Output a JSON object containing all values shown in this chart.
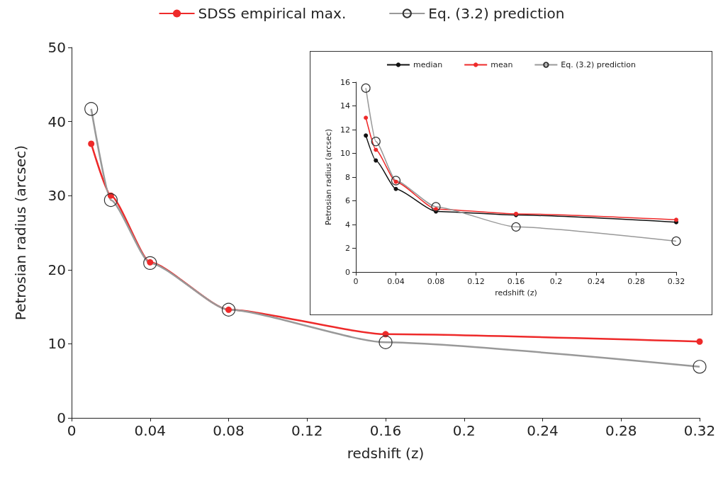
{
  "chart_data": [
    {
      "type": "line",
      "xlabel": "redshift (z)",
      "ylabel": "Petrosian radius (arcsec)",
      "x": [
        0.01,
        0.02,
        0.04,
        0.08,
        0.16,
        0.32
      ],
      "xlim": [
        0,
        0.32
      ],
      "xticks": [
        0,
        0.04,
        0.08,
        0.12,
        0.16,
        0.2,
        0.24,
        0.28,
        0.32
      ],
      "ylim": [
        0,
        50
      ],
      "yticks": [
        0,
        10,
        20,
        30,
        40,
        50
      ],
      "legend": "top",
      "grid": false,
      "series": [
        {
          "name": "SDSS empirical max.",
          "color": "#ee2a2a",
          "marker": "circle",
          "values": [
            37,
            30,
            21,
            14.6,
            11.3,
            10.3
          ]
        },
        {
          "name": "Eq. (3.2) prediction",
          "color": "#999999",
          "marker": "circle",
          "values": [
            41.7,
            29.4,
            20.9,
            14.6,
            10.2,
            6.9
          ]
        }
      ]
    },
    {
      "type": "line",
      "xlabel": "redshift (z)",
      "ylabel": "Petrosian radius (arcsec)",
      "x": [
        0.01,
        0.02,
        0.04,
        0.08,
        0.16,
        0.32
      ],
      "xlim": [
        0,
        0.32
      ],
      "xticks": [
        0,
        0.04,
        0.08,
        0.12,
        0.16,
        0.2,
        0.24,
        0.28,
        0.32
      ],
      "ylim": [
        0,
        16
      ],
      "yticks": [
        0,
        2,
        4,
        6,
        8,
        10,
        12,
        14,
        16
      ],
      "legend": "top",
      "grid": false,
      "series": [
        {
          "name": "median",
          "color": "#111111",
          "marker": "circle",
          "values": [
            11.5,
            9.4,
            7.0,
            5.1,
            4.8,
            4.2
          ]
        },
        {
          "name": "mean",
          "color": "#ee2a2a",
          "marker": "circle",
          "values": [
            13,
            10.3,
            7.6,
            5.3,
            4.9,
            4.4
          ]
        },
        {
          "name": "Eq. (3.2) prediction",
          "color": "#999999",
          "marker": "circle",
          "values": [
            15.5,
            11,
            7.7,
            5.5,
            3.8,
            2.6
          ]
        }
      ]
    }
  ]
}
